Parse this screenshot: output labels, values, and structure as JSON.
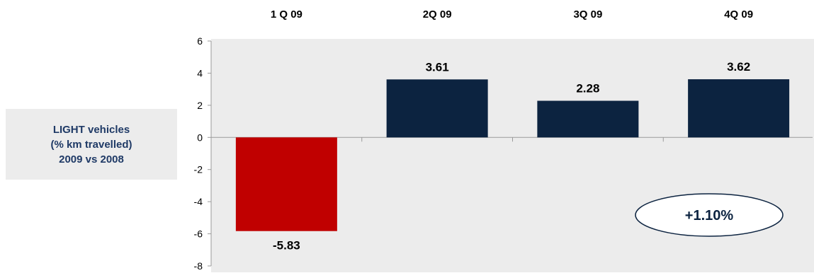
{
  "side_label": {
    "line1": "LIGHT vehicles",
    "line2": "(% km travelled)",
    "line3": "2009 vs 2008"
  },
  "chart_data": {
    "type": "bar",
    "categories": [
      "1 Q 09",
      "2Q 09",
      "3Q 09",
      "4Q 09"
    ],
    "values": [
      -5.83,
      3.61,
      2.28,
      3.62
    ],
    "data_labels": [
      "-5.83",
      "3.61",
      "2.28",
      "3.62"
    ],
    "ylim": [
      -8,
      6
    ],
    "yticks": [
      -8,
      -6,
      -4,
      -2,
      0,
      2,
      4,
      6
    ],
    "colors": {
      "negative": "#c00000",
      "positive": "#0c2340",
      "plot_background": "#ececec",
      "callout_border": "#0c2340"
    },
    "grid": false,
    "annotation": "+1.10%"
  }
}
